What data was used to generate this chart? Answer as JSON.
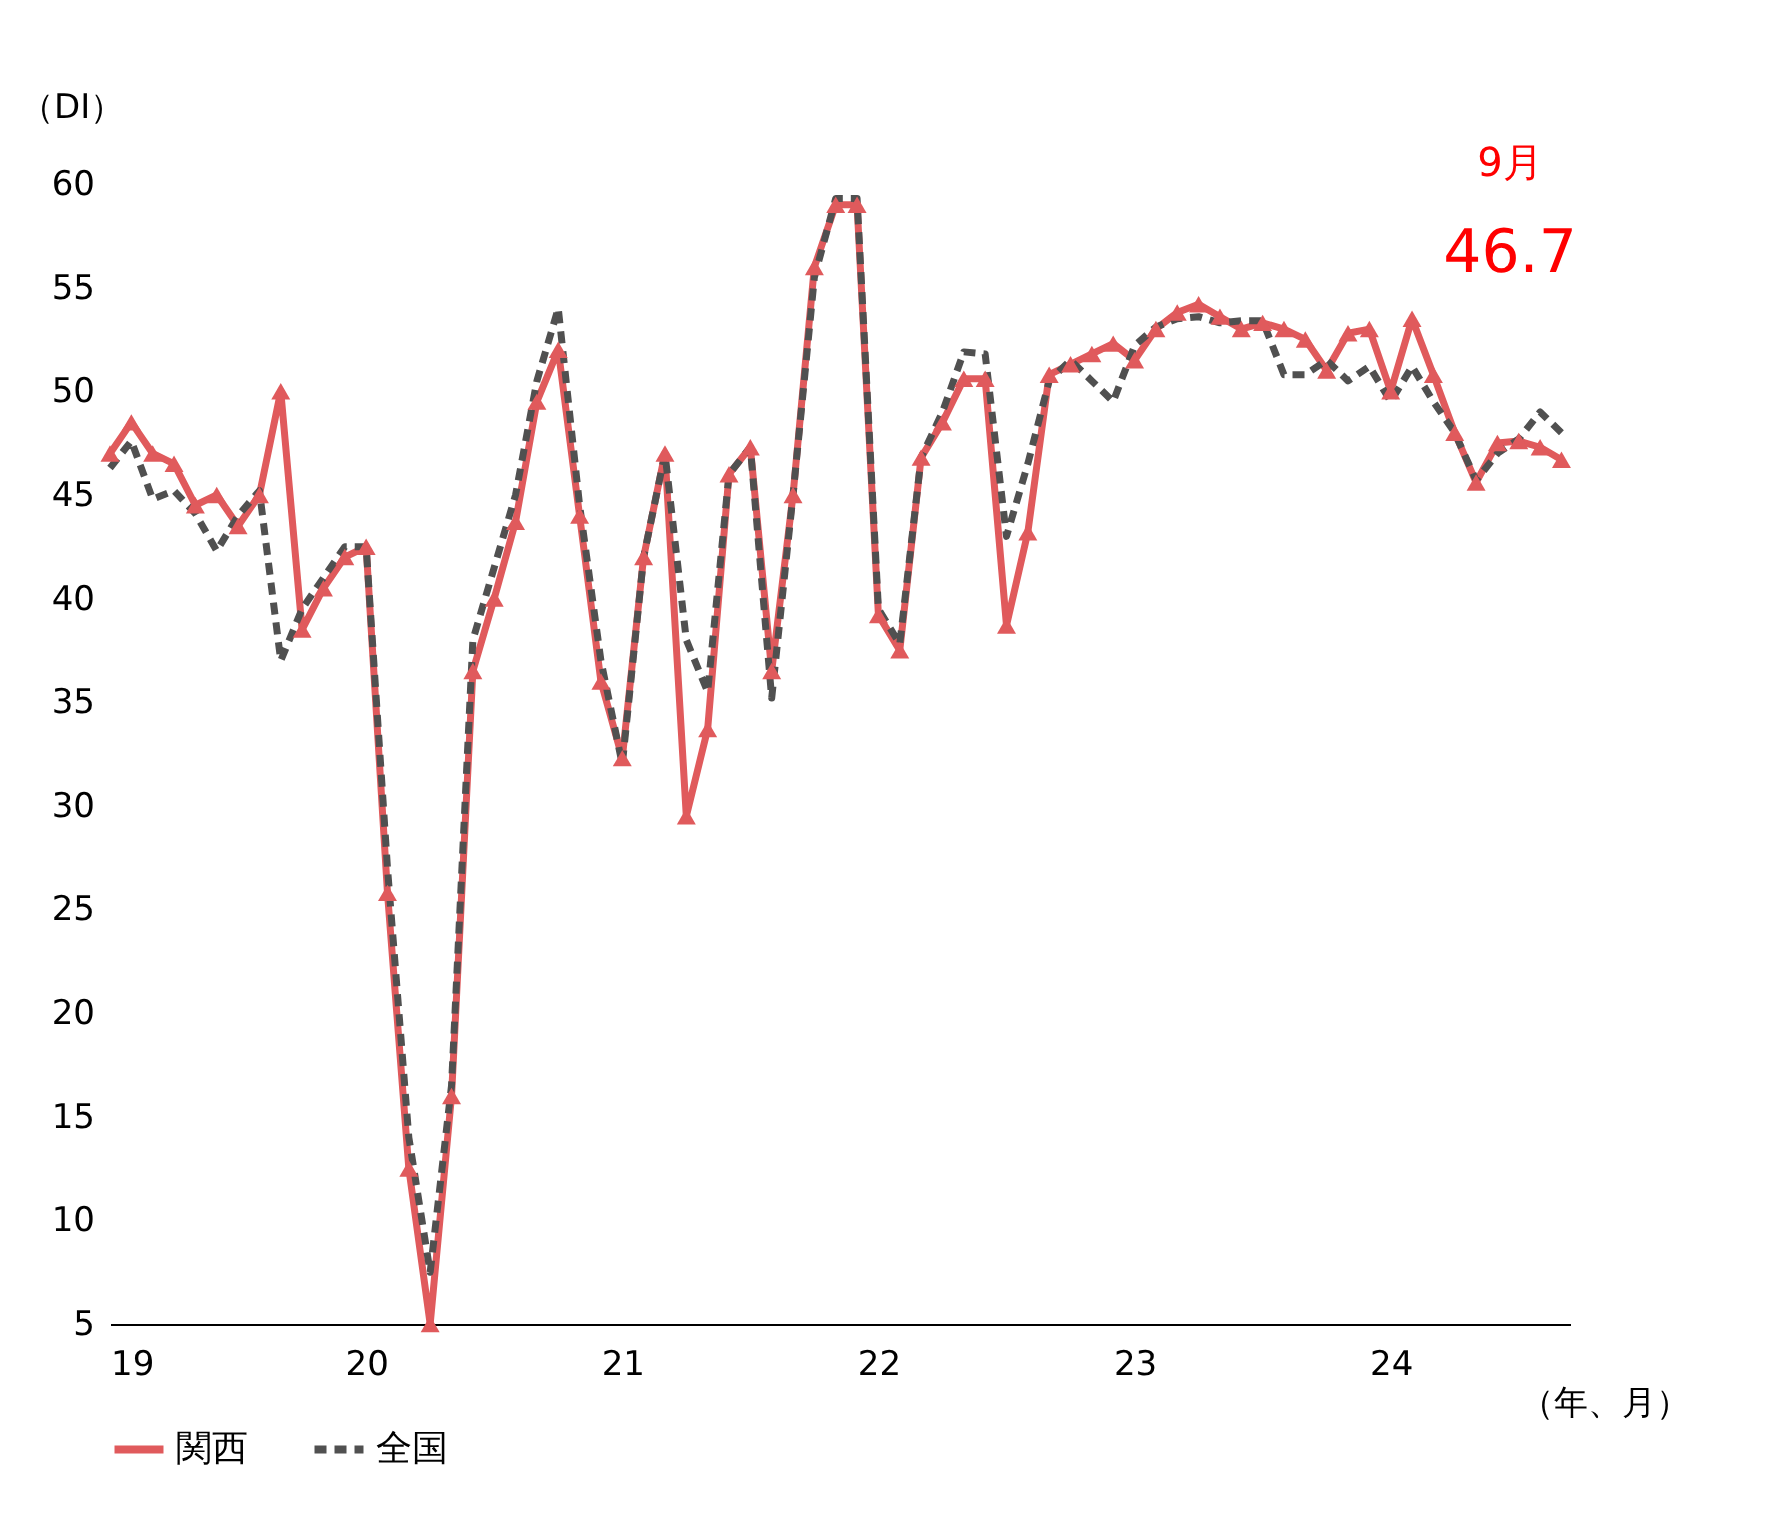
{
  "chart_data": {
    "type": "line",
    "ylabel": "（DI）",
    "xlabel": "（年、月）",
    "annotations": [
      "9月",
      "46.7"
    ],
    "categories": [
      "19",
      null,
      null,
      null,
      null,
      null,
      null,
      null,
      null,
      null,
      null,
      null,
      "20",
      null,
      null,
      null,
      null,
      null,
      null,
      null,
      null,
      null,
      null,
      null,
      "21",
      null,
      null,
      null,
      null,
      null,
      null,
      null,
      null,
      null,
      null,
      null,
      "22",
      null,
      null,
      null,
      null,
      null,
      null,
      null,
      null,
      null,
      null,
      null,
      "23",
      null,
      null,
      null,
      null,
      null,
      null,
      null,
      null,
      null,
      null,
      null,
      "24",
      null,
      null,
      null,
      null,
      null,
      null,
      null,
      null
    ],
    "series": [
      {
        "name": "関西",
        "color": "#e05a5c",
        "marker": "triangle",
        "line_style": "solid",
        "values": [
          47,
          48.5,
          47,
          46.5,
          44.5,
          45,
          43.5,
          45,
          50,
          38.5,
          40.5,
          42,
          42.5,
          25.8,
          12.5,
          5,
          16,
          36.5,
          40,
          43.7,
          49.5,
          52,
          44,
          36,
          32.3,
          42,
          47,
          29.5,
          33.7,
          46,
          47.3,
          36.5,
          45,
          56,
          59,
          59,
          39.2,
          37.5,
          46.8,
          48.5,
          50.6,
          50.6,
          38.7,
          43.2,
          50.8,
          51.3,
          51.8,
          52.3,
          51.5,
          53,
          53.8,
          54.2,
          53.6,
          53,
          53.3,
          53,
          52.5,
          51,
          52.8,
          53,
          50,
          53.5,
          50.8,
          48,
          45.6,
          47.5,
          47.6,
          47.3,
          46.7
        ]
      },
      {
        "name": "全国",
        "color": "#505050",
        "marker": "none",
        "line_style": "dashed",
        "values": [
          46.3,
          47.6,
          44.8,
          45.2,
          44.1,
          42.3,
          44,
          45.2,
          37,
          39.5,
          41,
          42.5,
          42.5,
          27,
          14,
          7.5,
          16.5,
          38,
          41.5,
          45,
          50.5,
          54,
          44.5,
          37,
          32,
          42,
          47,
          38,
          35.5,
          46,
          47.3,
          35.2,
          45,
          55.5,
          59.3,
          59.3,
          39.5,
          37.8,
          46.8,
          49,
          51.9,
          51.8,
          43,
          46.5,
          50.5,
          51.5,
          50.5,
          49.5,
          52.2,
          53.1,
          53.5,
          53.6,
          53.3,
          53.4,
          53.4,
          50.8,
          50.8,
          51.5,
          50.5,
          51.2,
          49.5,
          51.2,
          49.5,
          48,
          45.7,
          47,
          47.7,
          49,
          48
        ]
      }
    ],
    "ylim": [
      5,
      60
    ],
    "yticks": [
      5,
      10,
      15,
      20,
      25,
      30,
      35,
      40,
      45,
      50,
      55,
      60
    ],
    "grid": false,
    "legend": "bottom"
  }
}
